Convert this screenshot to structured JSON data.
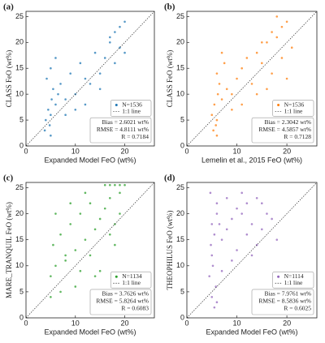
{
  "chart_data": [
    {
      "type": "scatter",
      "panel_label": "(a)",
      "x_label": "Expanded Model FeO (wt%)",
      "y_label": "CLASS FeO (wt%)",
      "xlim": [
        0,
        26
      ],
      "ylim": [
        0,
        26
      ],
      "xticks": [
        0,
        10,
        20
      ],
      "yticks": [
        0,
        5,
        10,
        15,
        20,
        25
      ],
      "reference_line": "1:1 line",
      "stats": [
        "Bias = 2.6021 wt%",
        "RMSE = 4.8111 wt%",
        "R = 0.7184"
      ],
      "series": [
        {
          "name": "N=1536",
          "color": "#1f77b4",
          "x": [
            4,
            4.5,
            5,
            5.2,
            4.8,
            5.5,
            6,
            3.8,
            4.2,
            5,
            6.5,
            7,
            8,
            9,
            10,
            11,
            12,
            13,
            14,
            15,
            16,
            17,
            18,
            19,
            20,
            18,
            19,
            17,
            12,
            10,
            8,
            6,
            5,
            15,
            20
          ],
          "y": [
            5,
            7,
            6,
            9,
            4,
            11,
            8,
            3,
            13,
            15,
            10,
            12,
            9,
            14,
            10,
            16,
            13,
            12,
            18,
            14,
            17,
            20,
            22,
            23,
            24,
            16,
            19,
            21,
            8,
            7,
            6,
            17,
            2,
            11,
            18
          ]
        }
      ]
    },
    {
      "type": "scatter",
      "panel_label": "(b)",
      "x_label": "Lemelin et al., 2015 FeO (wt%)",
      "y_label": "CLASS FeO (wt%)",
      "xlim": [
        0,
        26
      ],
      "ylim": [
        0,
        26
      ],
      "xticks": [
        0,
        10,
        20
      ],
      "yticks": [
        0,
        5,
        10,
        15,
        20,
        25
      ],
      "reference_line": "1:1 line",
      "stats": [
        "Bias = 2.3042 wt%",
        "RMSE = 4.5857 wt%",
        "R = 0.7128"
      ],
      "series": [
        {
          "name": "N=1536",
          "color": "#ff7f0e",
          "x": [
            5,
            5.5,
            6,
            6.2,
            5.8,
            6.5,
            7,
            5.3,
            6,
            7.5,
            8,
            9,
            10,
            11,
            12,
            13,
            14,
            15,
            16,
            17,
            18,
            19,
            20,
            21,
            18,
            17,
            16,
            14,
            11,
            9,
            7,
            6,
            15,
            19,
            20
          ],
          "y": [
            6,
            8,
            5,
            10,
            4,
            12,
            9,
            3,
            14,
            16,
            11,
            10,
            13,
            15,
            17,
            12,
            18,
            16,
            20,
            22,
            21,
            23,
            24,
            19,
            25,
            14,
            11,
            10,
            8,
            7,
            18,
            2,
            20,
            17,
            13
          ]
        }
      ]
    },
    {
      "type": "scatter",
      "panel_label": "(c)",
      "x_label": "Expanded Model FeO (wt%)",
      "y_label": "MARE_TRANQUIL FeO (wt%)",
      "xlim": [
        0,
        26
      ],
      "ylim": [
        0,
        26
      ],
      "xticks": [
        0,
        10,
        20
      ],
      "yticks": [
        0,
        5,
        10,
        15,
        20,
        25
      ],
      "reference_line": "1:1 line",
      "stats": [
        "Bias = 3.7626 wt%",
        "RMSE = 5.8264 wt%",
        "R = 0.6083"
      ],
      "series": [
        {
          "name": "N=1134",
          "color": "#2ca02c",
          "x": [
            5,
            5.5,
            6,
            7,
            8,
            9,
            10,
            11,
            12,
            13,
            14,
            15,
            16,
            17,
            18,
            19,
            20,
            16,
            17,
            18,
            19,
            15,
            6,
            7,
            8,
            9,
            11,
            13,
            14,
            17,
            18,
            19,
            12,
            10,
            5
          ],
          "y": [
            8,
            14,
            10,
            16,
            12,
            18,
            13,
            20,
            15,
            22,
            17,
            19,
            25.5,
            25.5,
            25.5,
            25.5,
            25.5,
            21,
            23,
            18,
            24,
            9,
            20,
            5,
            11,
            22,
            9,
            12,
            8,
            16,
            14,
            20,
            24,
            6,
            4
          ]
        }
      ]
    },
    {
      "type": "scatter",
      "panel_label": "(d)",
      "x_label": "Expanded Model FeO (wt%)",
      "y_label": "THEOPHILUS FeO (wt%)",
      "xlim": [
        0,
        26
      ],
      "ylim": [
        0,
        26
      ],
      "xticks": [
        0,
        10,
        20
      ],
      "yticks": [
        0,
        5,
        10,
        15,
        20,
        25
      ],
      "reference_line": "1:1 line",
      "stats": [
        "Bias = 7.9761 wt%",
        "RMSE = 8.5836 wt%",
        "R = 0.6025"
      ],
      "series": [
        {
          "name": "N=1114",
          "color": "#9467bd",
          "x": [
            4.5,
            5,
            5.5,
            6,
            5.2,
            4.8,
            6.5,
            5.8,
            5,
            6,
            7,
            8,
            9,
            10,
            11,
            12,
            13,
            14,
            15,
            16,
            17,
            12,
            10,
            9,
            8,
            6,
            5.5,
            4.7,
            14,
            11,
            13,
            15,
            18,
            7,
            5
          ],
          "y": [
            8,
            12,
            16,
            20,
            10,
            14,
            18,
            6,
            4,
            22,
            15,
            17,
            19,
            21,
            20,
            22,
            18,
            23,
            17,
            20,
            19,
            16,
            13,
            11,
            23,
            3,
            2,
            24,
            14,
            24,
            12,
            22,
            15,
            9,
            18
          ]
        }
      ]
    }
  ]
}
